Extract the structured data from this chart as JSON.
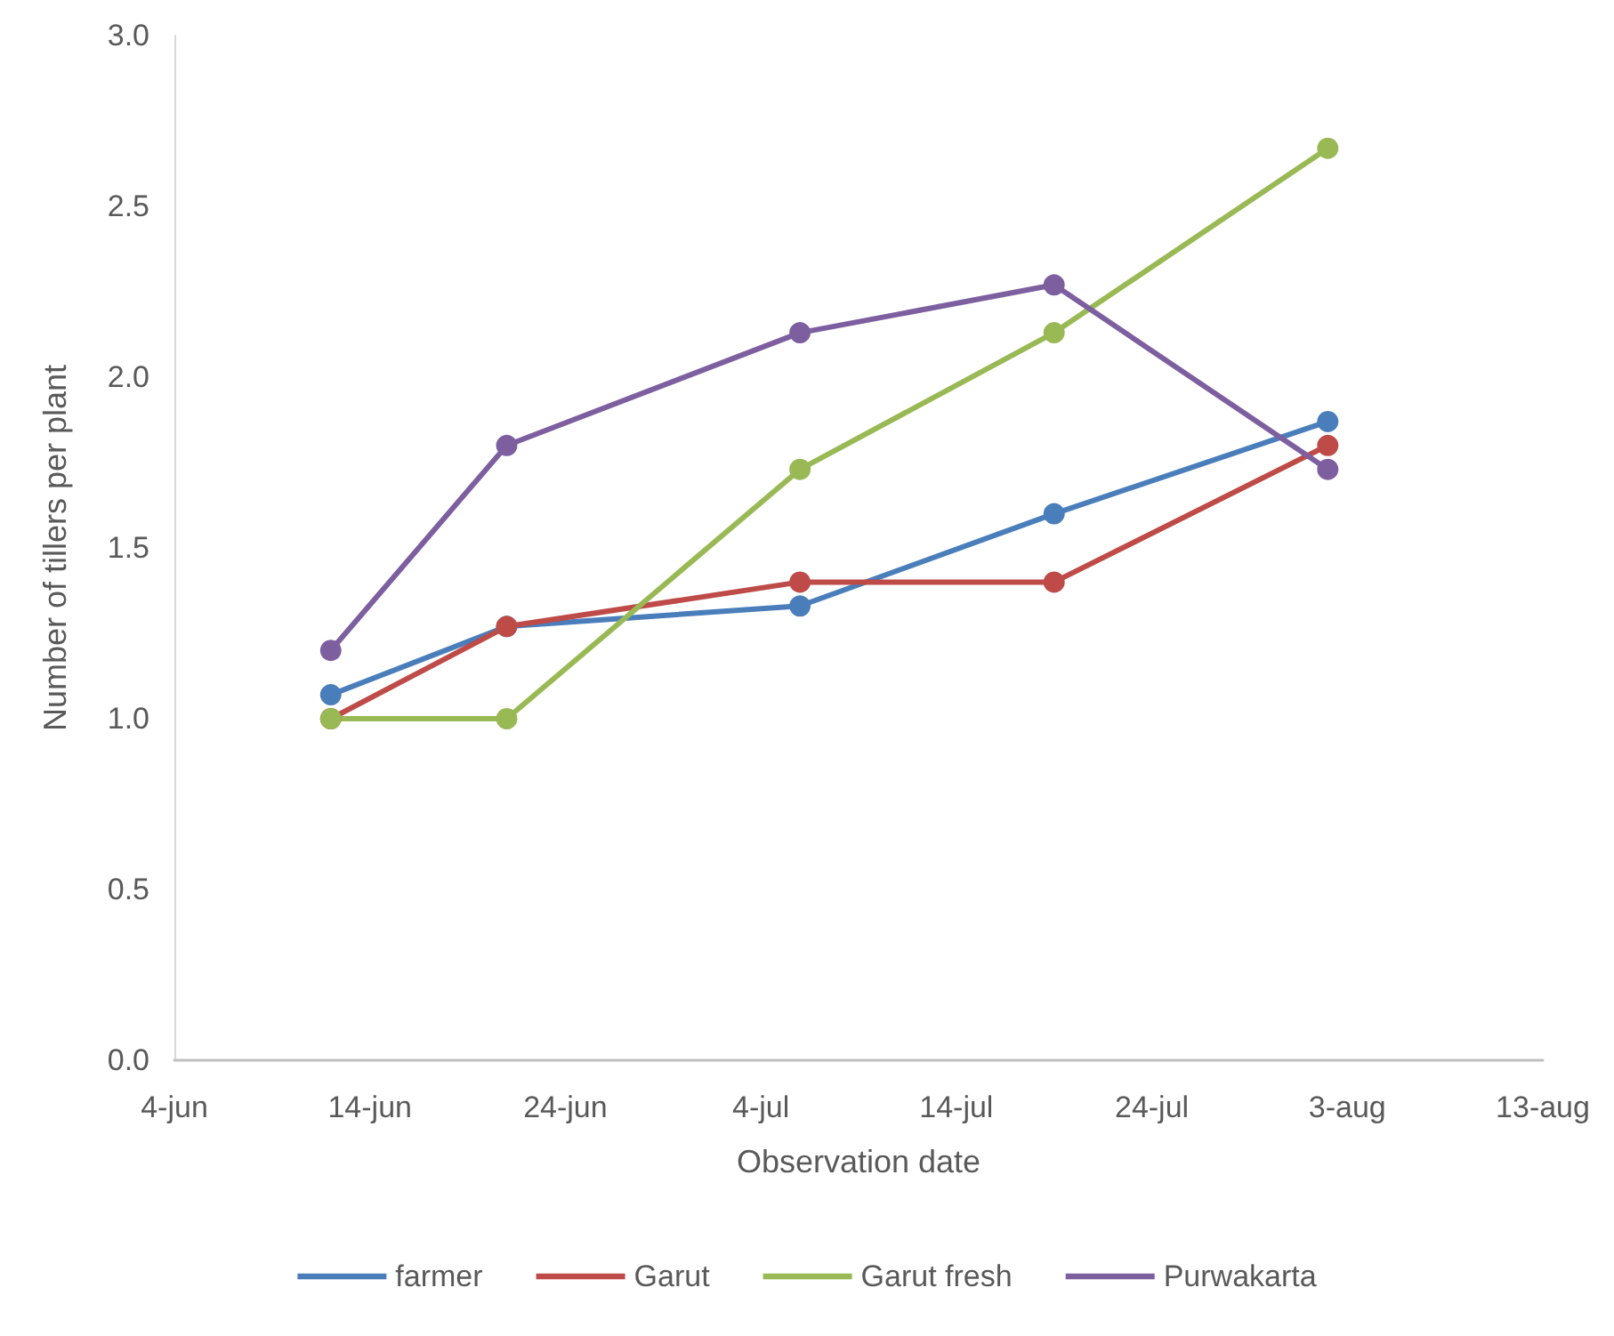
{
  "chart_data": {
    "type": "line",
    "xlabel": "Observation date",
    "ylabel": "Number of tillers per plant",
    "x": [
      "--06-12",
      "--06-21",
      "--07-06",
      "--07-19",
      "--08-02"
    ],
    "series": [
      {
        "name": "farmer",
        "color": "#4a7ebb",
        "values": [
          1.07,
          1.27,
          1.33,
          1.6,
          1.87
        ]
      },
      {
        "name": "Garut",
        "color": "#be4b48",
        "values": [
          1.0,
          1.27,
          1.4,
          1.4,
          1.8
        ]
      },
      {
        "name": "Garut fresh",
        "color": "#98b954",
        "values": [
          1.0,
          1.0,
          1.73,
          2.13,
          2.67
        ]
      },
      {
        "name": "Purwakarta",
        "color": "#7d5fa0",
        "values": [
          1.2,
          1.8,
          2.13,
          2.27,
          1.73
        ]
      }
    ],
    "xlim": [
      "--06-04",
      "--08-13"
    ],
    "xticks": [
      {
        "value": "--06-04",
        "label": "4-jun"
      },
      {
        "value": "--06-14",
        "label": "14-jun"
      },
      {
        "value": "--06-24",
        "label": "24-jun"
      },
      {
        "value": "--07-04",
        "label": "4-jul"
      },
      {
        "value": "--07-14",
        "label": "14-jul"
      },
      {
        "value": "--07-24",
        "label": "24-jul"
      },
      {
        "value": "--08-03",
        "label": "3-aug"
      },
      {
        "value": "--08-13",
        "label": "13-aug"
      }
    ],
    "ylim": [
      0,
      3
    ],
    "yticks": [
      {
        "value": 0,
        "label": "0.0"
      },
      {
        "value": 0.5,
        "label": "0.5"
      },
      {
        "value": 1,
        "label": "1.0"
      },
      {
        "value": 1.5,
        "label": "1.5"
      },
      {
        "value": 2,
        "label": "2.0"
      },
      {
        "value": 2.5,
        "label": "2.5"
      },
      {
        "value": 3,
        "label": "3.0"
      }
    ],
    "legend": "bottom",
    "marker": "circle",
    "line_style": "solid",
    "grid": false
  }
}
